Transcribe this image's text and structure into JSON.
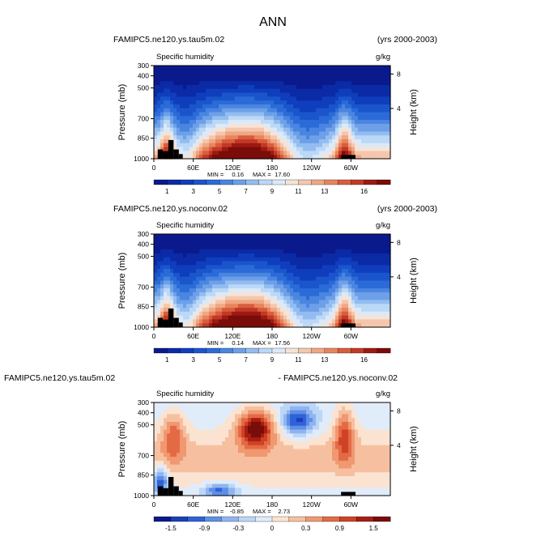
{
  "page": {
    "title": "ANN"
  },
  "colors": {
    "land": "#000000",
    "main_palette": [
      "#0a1a8c",
      "#0a2aa6",
      "#0f3ebd",
      "#1a55cc",
      "#2b6bd8",
      "#4a85e0",
      "#6da0e8",
      "#93bdf0",
      "#bcd8f7",
      "#dbe9f8",
      "#f6e3d8",
      "#f4c7ad",
      "#f0a783",
      "#e8845e",
      "#d95d3d",
      "#c13a25",
      "#9c1a12",
      "#7a0c0a"
    ],
    "diff_palette": [
      "#0a1a8c",
      "#1a3fb8",
      "#2f62d6",
      "#5d8fe6",
      "#8fb5f0",
      "#bcd6f7",
      "#e0ecfa",
      "#fbe3d2",
      "#f6c0a0",
      "#f09870",
      "#e46a45",
      "#cf4225",
      "#a81e12",
      "#7a0c0a"
    ]
  },
  "panels": [
    {
      "case_left": "FAMIPC5.ne120.ys.tau5m.02",
      "case_right": "(yrs 2000-2003)",
      "variable": "Specific humidity",
      "units": "g/kg",
      "stats": {
        "min_label": "MIN =",
        "min": "0.16",
        "max_label": "MAX =",
        "max": "17.60"
      }
    },
    {
      "case_left": "FAMIPC5.ne120.ys.noconv.02",
      "case_right": "(yrs 2000-2003)",
      "variable": "Specific humidity",
      "units": "g/kg",
      "stats": {
        "min_label": "MIN =",
        "min": "0.14",
        "max_label": "MAX =",
        "max": "17.56"
      }
    },
    {
      "case_left": "FAMIPC5.ne120.ys.tau5m.02",
      "case_right": "- FAMIPC5.ne120.ys.noconv.02",
      "variable": "Specific humidity",
      "units": "g/kg",
      "stats": {
        "min_label": "MIN =",
        "min": "-0.85",
        "max_label": "MAX =",
        "max": "2.73"
      }
    }
  ],
  "chart_data": [
    {
      "type": "heatmap",
      "title": "Specific humidity",
      "xlabel": "",
      "ylabel": "Pressure (mb)",
      "y2label": "Height (km)",
      "x_ticks": [
        "0",
        "60E",
        "120E",
        "180",
        "120W",
        "60W"
      ],
      "y_ticks": [
        "300",
        "400",
        "500",
        "700",
        "850",
        "1000"
      ],
      "y2_ticks": [
        "8",
        "4"
      ],
      "colorbar_labels": [
        "1",
        "3",
        "5",
        "7",
        "9",
        "11",
        "13",
        "16"
      ],
      "value_range": [
        0.16,
        17.6
      ],
      "units": "g/kg"
    },
    {
      "type": "heatmap",
      "title": "Specific humidity",
      "xlabel": "",
      "ylabel": "Pressure (mb)",
      "y2label": "Height (km)",
      "x_ticks": [
        "0",
        "60E",
        "120E",
        "180",
        "120W",
        "60W"
      ],
      "y_ticks": [
        "300",
        "400",
        "500",
        "700",
        "850",
        "1000"
      ],
      "y2_ticks": [
        "8",
        "4"
      ],
      "colorbar_labels": [
        "1",
        "3",
        "5",
        "7",
        "9",
        "11",
        "13",
        "16"
      ],
      "value_range": [
        0.14,
        17.56
      ],
      "units": "g/kg"
    },
    {
      "type": "heatmap",
      "title": "Specific humidity",
      "xlabel": "",
      "ylabel": "Pressure (mb)",
      "y2label": "Height (km)",
      "x_ticks": [
        "0",
        "60E",
        "120E",
        "180",
        "120W",
        "60W"
      ],
      "y_ticks": [
        "300",
        "400",
        "500",
        "700",
        "850",
        "1000"
      ],
      "y2_ticks": [
        "8",
        "4"
      ],
      "colorbar_labels": [
        "-1.5",
        "-0.9",
        "-0.3",
        "0",
        "0.3",
        "0.9",
        "1.5"
      ],
      "value_range": [
        -0.85,
        2.73
      ],
      "units": "g/kg"
    }
  ]
}
